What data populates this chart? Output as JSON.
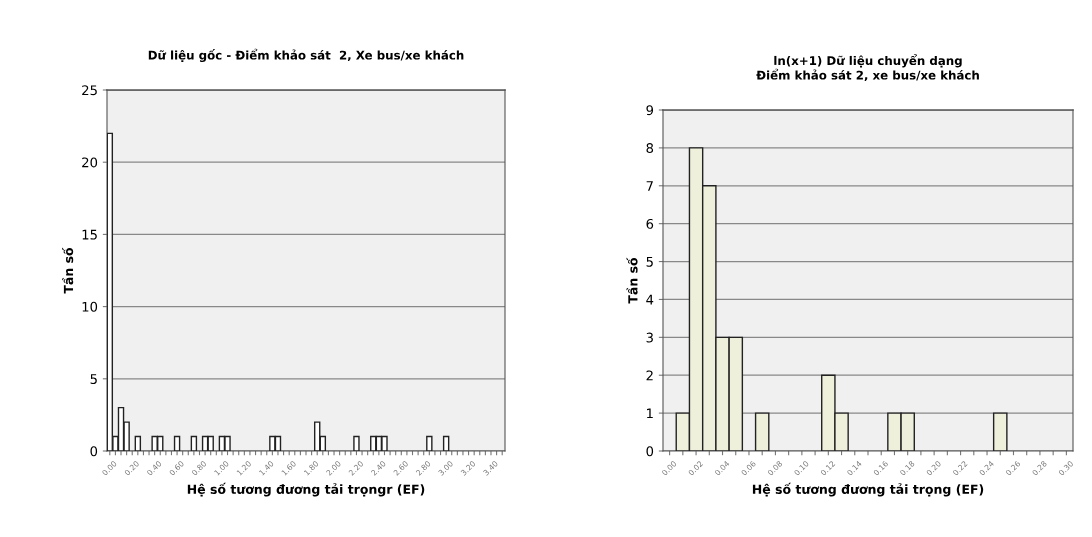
{
  "chart_data": [
    {
      "type": "bar",
      "title": "Dữ liệu gốc - Điểm khảo sát  2, Xe bus/xe khách",
      "xlabel": "Hệ số tương đương tải trọngr (EF)",
      "ylabel": "Tần số",
      "categories": [
        "0.00",
        null,
        null,
        null,
        "0.20",
        null,
        null,
        null,
        "0.40",
        null,
        null,
        null,
        "0.60",
        null,
        null,
        null,
        "0.80",
        null,
        null,
        null,
        "1.00",
        null,
        null,
        null,
        "1.20",
        null,
        null,
        null,
        "1.40",
        null,
        null,
        null,
        "1.60",
        null,
        null,
        null,
        "1.80",
        null,
        null,
        null,
        "2.00",
        null,
        null,
        null,
        "2.20",
        null,
        null,
        null,
        "2.40",
        null,
        null,
        null,
        "2.60",
        null,
        null,
        null,
        "2.80",
        null,
        null,
        null,
        "3.00",
        null,
        null,
        null,
        "3.20",
        null,
        null,
        null,
        "3.40",
        null,
        null
      ],
      "values": [
        22,
        1,
        3,
        2,
        0,
        1,
        0,
        0,
        1,
        1,
        0,
        0,
        1,
        0,
        0,
        1,
        0,
        1,
        1,
        0,
        1,
        1,
        0,
        0,
        0,
        0,
        0,
        0,
        0,
        1,
        1,
        0,
        0,
        0,
        0,
        0,
        0,
        2,
        1,
        0,
        0,
        0,
        0,
        0,
        1,
        0,
        0,
        1,
        1,
        1,
        0,
        0,
        0,
        0,
        0,
        0,
        0,
        1,
        0,
        0,
        1,
        0,
        0,
        0,
        0,
        0,
        0,
        0,
        0,
        0,
        0
      ],
      "color": "#ffffff",
      "ylim": [
        0,
        25
      ],
      "yticks": [
        0,
        5,
        10,
        15,
        20,
        25
      ],
      "grid": "y"
    },
    {
      "type": "bar",
      "title": "ln(x+1) Dữ liệu chuyển dạng\nĐiểm khảo sát 2, xe bus/xe khách",
      "xlabel": "Hệ số tương đương tải trọng (EF)",
      "ylabel": "Tần số",
      "categories": [
        "0.00",
        null,
        "0.02",
        null,
        "0.04",
        null,
        "0.06",
        null,
        "0.08",
        null,
        "0.10",
        null,
        "0.12",
        null,
        "0.14",
        null,
        "0.16",
        null,
        "0.18",
        null,
        "0.20",
        null,
        "0.22",
        null,
        "0.24",
        null,
        "0.26",
        null,
        "0.28",
        null,
        "0.30"
      ],
      "values": [
        0,
        1,
        8,
        7,
        3,
        3,
        0,
        1,
        0,
        0,
        0,
        0,
        2,
        1,
        0,
        0,
        0,
        1,
        1,
        0,
        0,
        0,
        0,
        0,
        0,
        1,
        0,
        0,
        0,
        0,
        0
      ],
      "color": "#eef0dc",
      "ylim": [
        0,
        9
      ],
      "yticks": [
        0,
        1,
        2,
        3,
        4,
        5,
        6,
        7,
        8,
        9
      ],
      "grid": "y"
    }
  ]
}
